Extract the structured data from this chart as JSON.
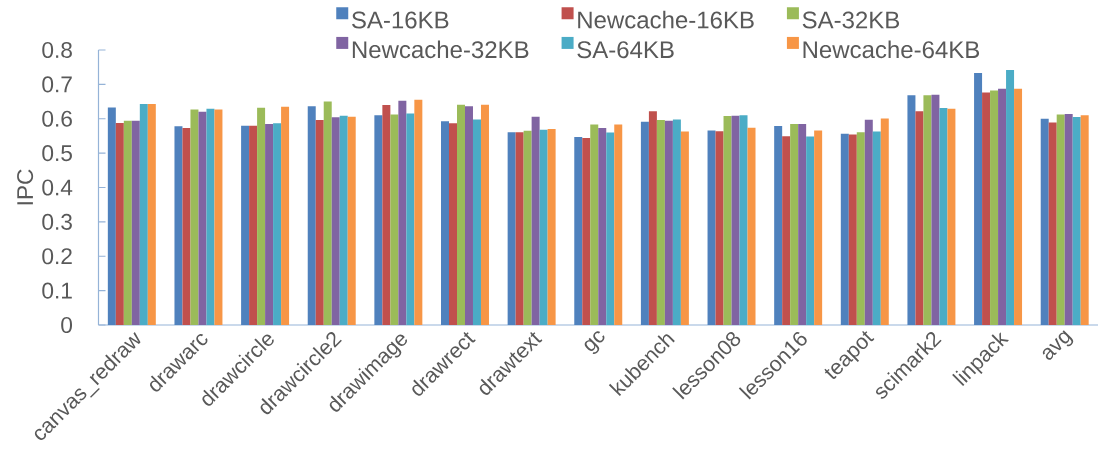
{
  "chart_data": {
    "type": "bar",
    "ylabel": "IPC",
    "categories": [
      "canvas_redraw",
      "drawarc",
      "drawcircle",
      "drawcircle2",
      "drawimage",
      "drawrect",
      "drawtext",
      "gc",
      "kubench",
      "lesson08",
      "lesson16",
      "teapot",
      "scimark2",
      "linpack",
      "avg"
    ],
    "series": [
      {
        "name": "SA-16KB",
        "color": "#4f81bd",
        "values": [
          0.633,
          0.578,
          0.58,
          0.636,
          0.61,
          0.593,
          0.561,
          0.547,
          0.591,
          0.566,
          0.579,
          0.556,
          0.668,
          0.733,
          0.6
        ]
      },
      {
        "name": "Newcache-16KB",
        "color": "#c0504d",
        "values": [
          0.588,
          0.573,
          0.58,
          0.596,
          0.64,
          0.587,
          0.561,
          0.544,
          0.622,
          0.564,
          0.549,
          0.554,
          0.622,
          0.676,
          0.589
        ]
      },
      {
        "name": "SA-32KB",
        "color": "#9bbb59",
        "values": [
          0.594,
          0.627,
          0.632,
          0.65,
          0.612,
          0.641,
          0.565,
          0.583,
          0.596,
          0.608,
          0.585,
          0.561,
          0.668,
          0.682,
          0.612
        ]
      },
      {
        "name": "Newcache-32KB",
        "color": "#8064a2",
        "values": [
          0.594,
          0.62,
          0.585,
          0.604,
          0.652,
          0.636,
          0.606,
          0.573,
          0.594,
          0.609,
          0.585,
          0.597,
          0.67,
          0.687,
          0.614
        ]
      },
      {
        "name": "SA-64KB",
        "color": "#4bacc6",
        "values": [
          0.643,
          0.629,
          0.587,
          0.609,
          0.615,
          0.598,
          0.568,
          0.56,
          0.598,
          0.61,
          0.548,
          0.563,
          0.631,
          0.742,
          0.605
        ]
      },
      {
        "name": "Newcache-64KB",
        "color": "#f79646",
        "values": [
          0.643,
          0.627,
          0.635,
          0.606,
          0.655,
          0.641,
          0.57,
          0.583,
          0.563,
          0.574,
          0.566,
          0.601,
          0.629,
          0.687,
          0.61
        ]
      }
    ],
    "ylim": [
      0,
      0.8
    ],
    "yticks": [
      0,
      0.1,
      0.2,
      0.3,
      0.4,
      0.5,
      0.6,
      0.7,
      0.8
    ],
    "legend": "top"
  }
}
